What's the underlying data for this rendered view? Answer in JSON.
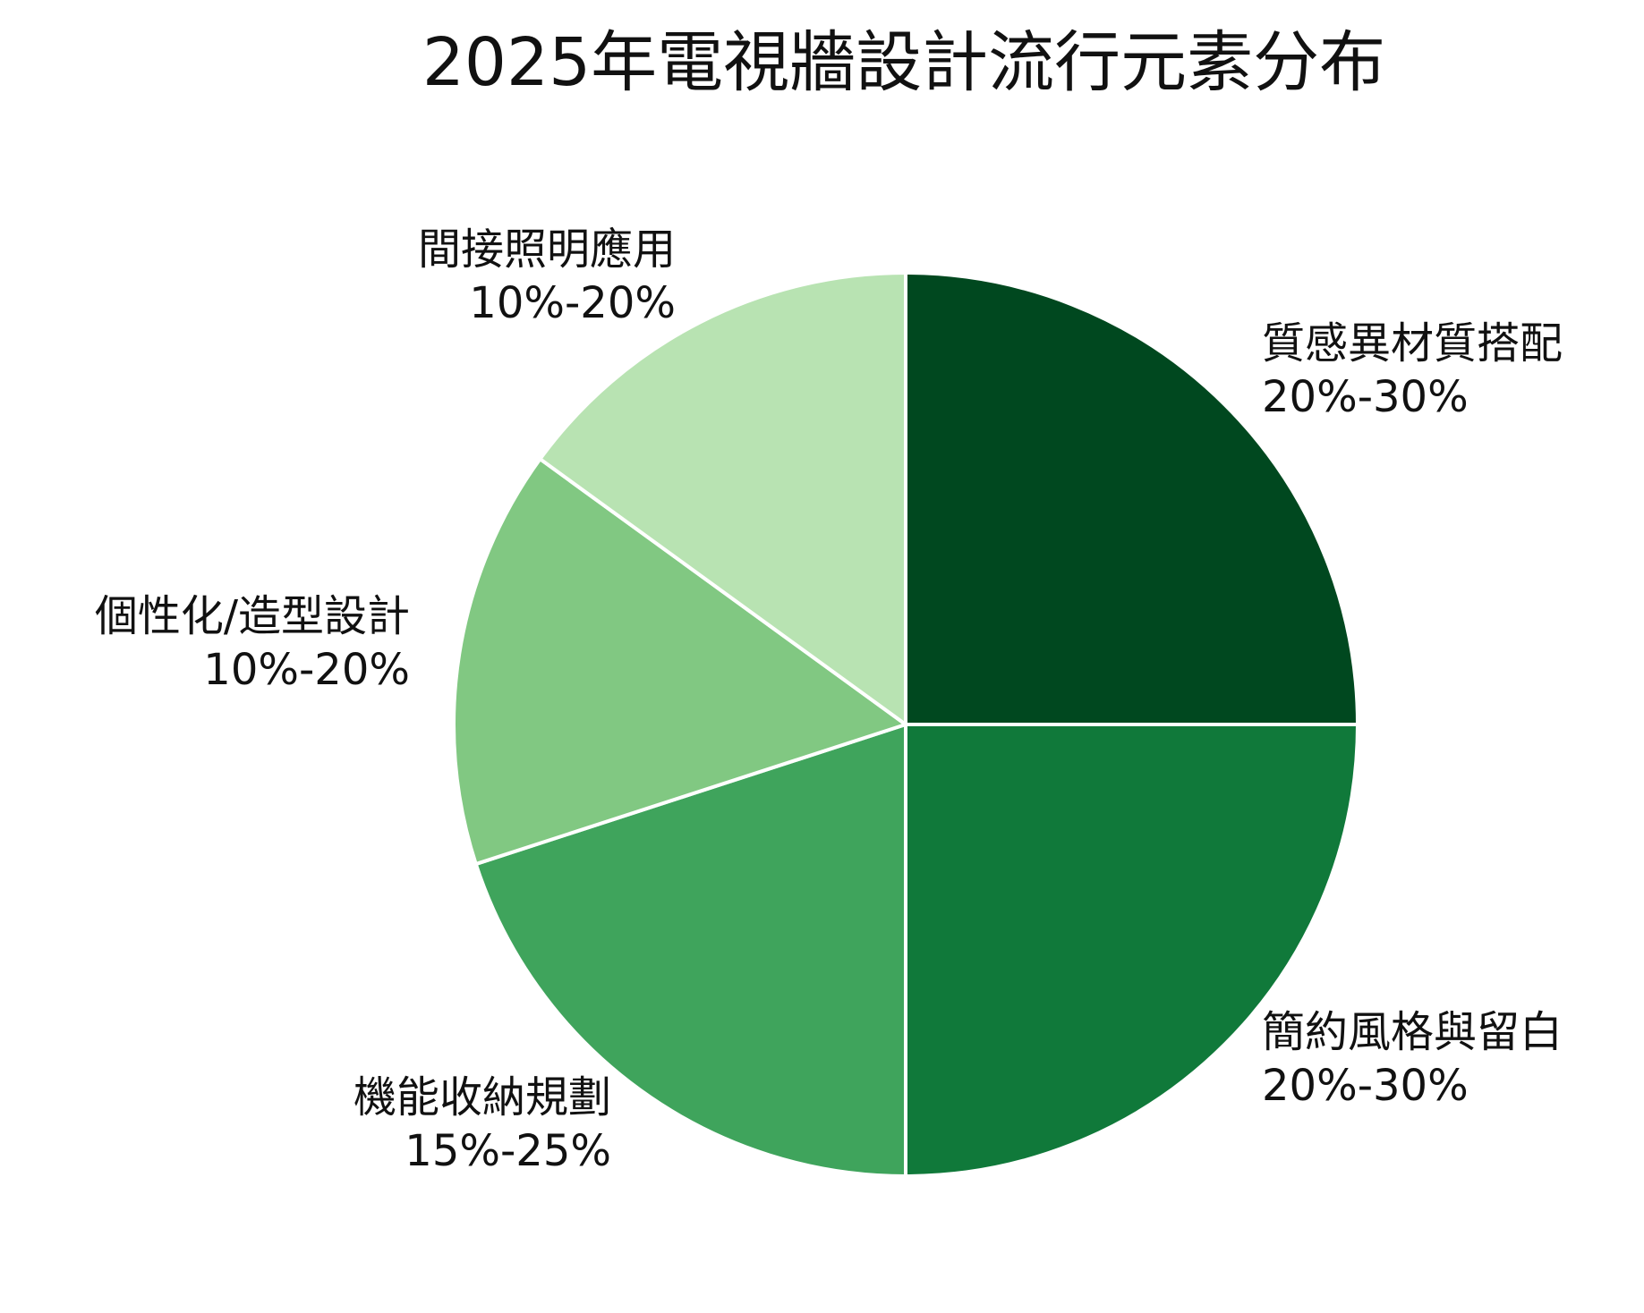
{
  "chart_data": {
    "type": "pie",
    "title": "2025年電視牆設計流行元素分布",
    "slices": [
      {
        "name": "質感異材質搭配",
        "range": "20%-30%",
        "value": 25,
        "color": "#00481f"
      },
      {
        "name": "簡約風格與留白",
        "range": "20%-30%",
        "value": 25,
        "color": "#10793a"
      },
      {
        "name": "機能收納規劃",
        "range": "15%-25%",
        "value": 20,
        "color": "#3fa45c"
      },
      {
        "name": "個性化/造型設計",
        "range": "10%-20%",
        "value": 15,
        "color": "#81c882"
      },
      {
        "name": "間接照明應用",
        "range": "10%-20%",
        "value": 15,
        "color": "#b8e3b2"
      }
    ],
    "start_angle": "12 o'clock",
    "direction": "clockwise",
    "slice_border_color": "#ffffff",
    "legend": "none"
  }
}
